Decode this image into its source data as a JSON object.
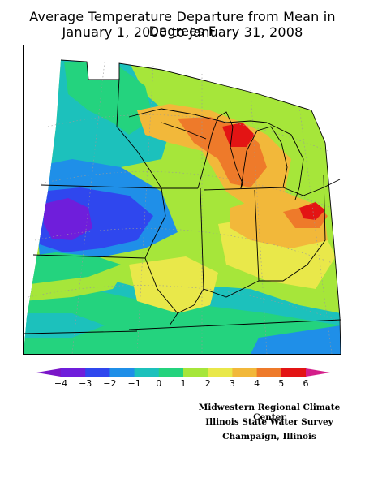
{
  "title": {
    "line1": "Average Temperature Departure from Mean in Degrees F",
    "line2": "January 1, 2008 to January 31, 2008"
  },
  "colors": {
    "minus4_below": "#7a16c8",
    "minus4": "#6f1edb",
    "minus3": "#2f47ee",
    "minus2": "#1f8fe8",
    "minus1": "#1cc1bc",
    "zero": "#24d37e",
    "one": "#a6e63a",
    "two": "#e9e84a",
    "three": "#f2b83a",
    "four": "#ee7a2a",
    "five": "#e31414",
    "six_above": "#d41e8a",
    "state_lines": "#000000",
    "graticule": "#9a9a9a"
  },
  "legend": {
    "ticks": [
      "−4",
      "−3",
      "−2",
      "−1",
      "0",
      "1",
      "2",
      "3",
      "4",
      "5",
      "6"
    ]
  },
  "credits": [
    "Midwestern Regional Climate Center",
    "Illinois State Water Survey",
    "Champaign, Illinois"
  ]
}
